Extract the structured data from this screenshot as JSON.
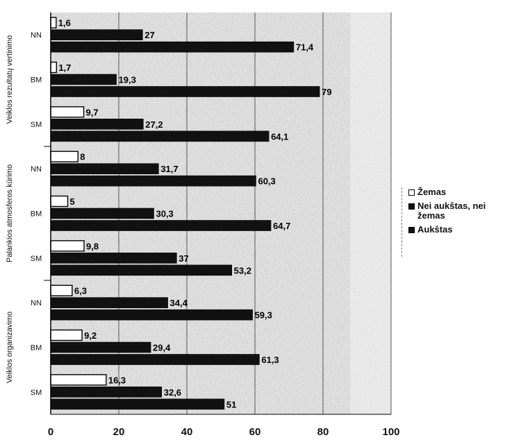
{
  "chart_data": {
    "type": "bar",
    "orientation": "horizontal",
    "xlim": [
      0,
      100
    ],
    "x_ticks": [
      "0",
      "20",
      "40",
      "60",
      "80",
      "100"
    ],
    "grid": true,
    "legend_position": "right",
    "groups": [
      {
        "label": "Veiklos rezultatų vertinimo",
        "categories": [
          "NN",
          "BM",
          "SM"
        ]
      },
      {
        "label": "Palankios atmosferos kūrimo",
        "categories": [
          "NN",
          "BM",
          "SM"
        ]
      },
      {
        "label": "Veiklos organizavimo",
        "categories": [
          "NN",
          "BM",
          "SM"
        ]
      }
    ],
    "series": [
      {
        "name": "Žemas",
        "color": "#ffffff",
        "values": [
          1.6,
          1.7,
          9.7,
          8,
          5,
          9.8,
          6.3,
          9.2,
          16.3
        ],
        "labels": [
          "1,6",
          "1,7",
          "9,7",
          "8",
          "5",
          "9,8",
          "6,3",
          "9,2",
          "16,3"
        ]
      },
      {
        "name": "Nei aukštas, nei žemas",
        "color": "#111111",
        "values": [
          27,
          19.3,
          27.2,
          31.7,
          30.3,
          37,
          34.4,
          29.4,
          32.6
        ],
        "labels": [
          "27",
          "19,3",
          "27,2",
          "31,7",
          "30,3",
          "37",
          "34,4",
          "29,4",
          "32,6"
        ]
      },
      {
        "name": "Aukštas",
        "color": "#111111",
        "values": [
          71.4,
          79,
          64.1,
          60.3,
          64.7,
          53.2,
          59.3,
          61.3,
          51
        ],
        "labels": [
          "71,4",
          "79",
          "64,1",
          "60,3",
          "64,7",
          "53,2",
          "59,3",
          "61,3",
          "51"
        ]
      }
    ]
  }
}
